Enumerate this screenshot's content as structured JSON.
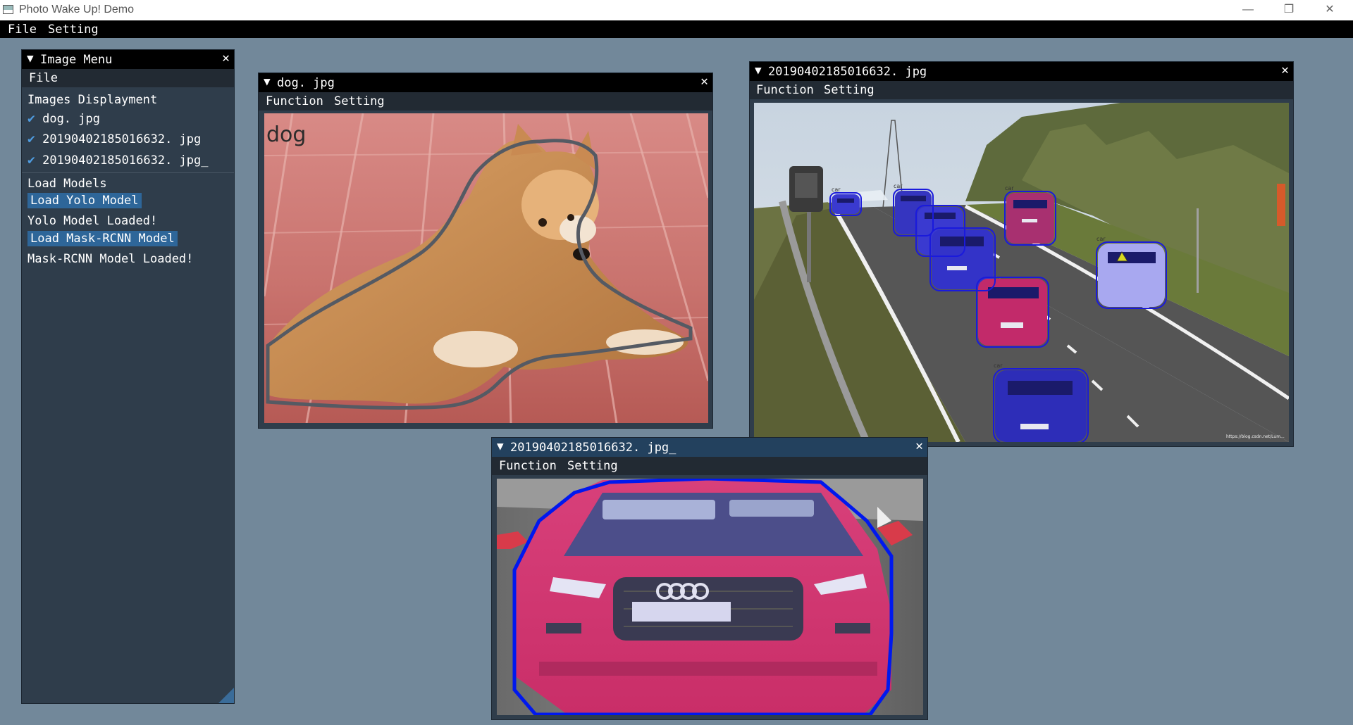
{
  "window": {
    "title": "Photo Wake Up! Demo"
  },
  "menubar": {
    "file": "File",
    "setting": "Setting"
  },
  "image_menu": {
    "title": "Image Menu",
    "file_menu": "File",
    "images_header": "Images Displayment",
    "images": [
      "dog. jpg",
      "20190402185016632. jpg",
      "20190402185016632. jpg_"
    ],
    "models_header": "Load Models",
    "load_yolo": "Load Yolo Model",
    "yolo_status": "Yolo Model Loaded!",
    "load_mask": "Load Mask-RCNN Model",
    "mask_status": "Mask-RCNN Model Loaded!"
  },
  "dog_window": {
    "title": "dog. jpg",
    "function": "Function",
    "setting": "Setting",
    "label": "dog"
  },
  "traffic_window": {
    "title": "20190402185016632. jpg",
    "function": "Function",
    "setting": "Setting",
    "labels": [
      "car",
      "car",
      "car",
      "car",
      "car"
    ],
    "watermark": "https://blog.csdn.net/Lum..."
  },
  "crop_window": {
    "title": "20190402185016632. jpg_",
    "function": "Function",
    "setting": "Setting"
  },
  "icons": [
    "collapse-triangle-icon",
    "close-icon",
    "checkmark-icon",
    "minimize-icon",
    "restore-icon"
  ],
  "colors": {
    "desktop": "#72889a",
    "panel": "#2f3d4b",
    "button": "#2e6699",
    "check": "#4f9ce0",
    "mask_outline": "#0000ee"
  }
}
